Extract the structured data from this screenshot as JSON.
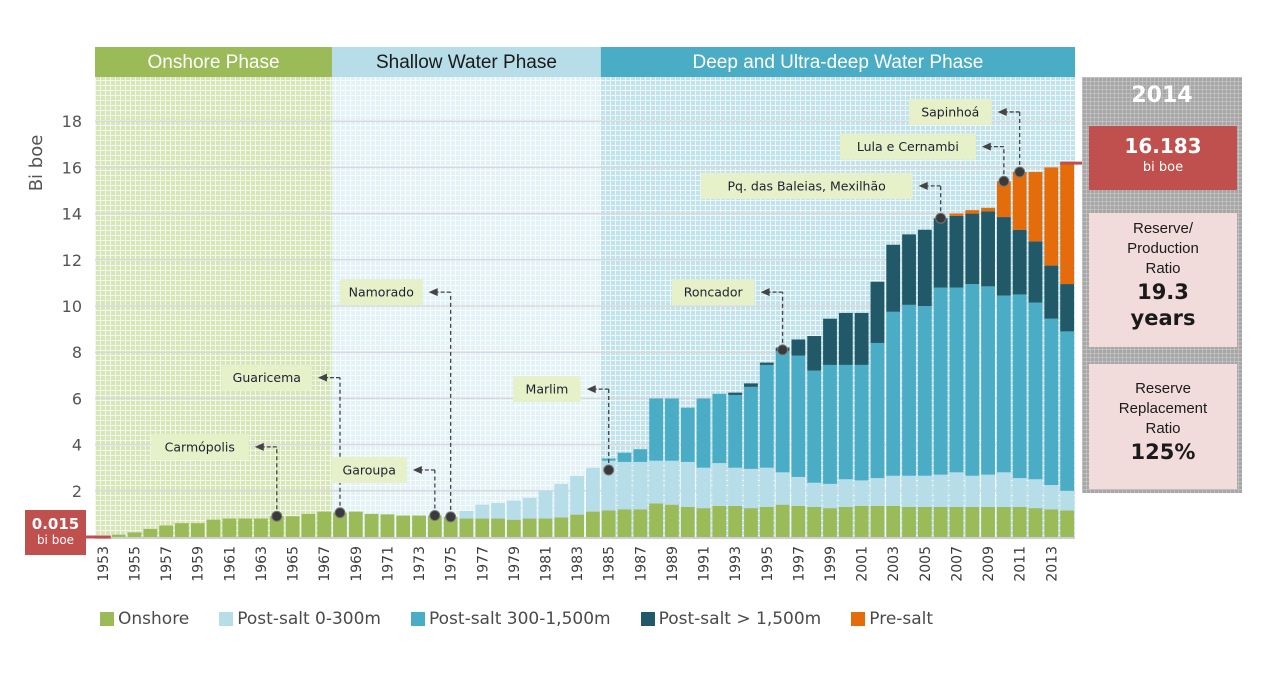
{
  "chart_data": {
    "type": "bar",
    "stacked": true,
    "ylabel": "Bi boe",
    "xlabel": "",
    "ylim": [
      0,
      19.5
    ],
    "yticks": [
      2,
      4,
      6,
      8,
      10,
      12,
      14,
      16,
      18
    ],
    "grid": true,
    "legend_position": "bottom",
    "categories": [
      "1953",
      "1954",
      "1955",
      "1956",
      "1957",
      "1958",
      "1959",
      "1960",
      "1961",
      "1962",
      "1963",
      "1964",
      "1965",
      "1966",
      "1967",
      "1968",
      "1969",
      "1970",
      "1971",
      "1972",
      "1973",
      "1974",
      "1975",
      "1976",
      "1977",
      "1978",
      "1979",
      "1980",
      "1981",
      "1982",
      "1983",
      "1984",
      "1985",
      "1986",
      "1987",
      "1988",
      "1989",
      "1990",
      "1991",
      "1992",
      "1993",
      "1994",
      "1995",
      "1996",
      "1997",
      "1998",
      "1999",
      "2000",
      "2001",
      "2002",
      "2003",
      "2004",
      "2005",
      "2006",
      "2007",
      "2008",
      "2009",
      "2010",
      "2011",
      "2012",
      "2013",
      "2014"
    ],
    "xtick_labels": [
      "1953",
      "1955",
      "1957",
      "1959",
      "1961",
      "1963",
      "1965",
      "1967",
      "1969",
      "1971",
      "1973",
      "1975",
      "1977",
      "1979",
      "1981",
      "1983",
      "1985",
      "1987",
      "1989",
      "1991",
      "1993",
      "1995",
      "1997",
      "1999",
      "2001",
      "2003",
      "2005",
      "2007",
      "2009",
      "2011",
      "2013"
    ],
    "series": [
      {
        "name": "Onshore",
        "color": "#9bbb59",
        "values": [
          0.015,
          0.1,
          0.2,
          0.35,
          0.5,
          0.6,
          0.6,
          0.75,
          0.8,
          0.8,
          0.8,
          0.9,
          0.9,
          1.0,
          1.1,
          1.05,
          1.1,
          1.0,
          0.98,
          0.93,
          0.93,
          0.93,
          0.87,
          0.8,
          0.8,
          0.8,
          0.75,
          0.8,
          0.8,
          0.85,
          0.97,
          1.1,
          1.15,
          1.2,
          1.2,
          1.45,
          1.4,
          1.3,
          1.25,
          1.35,
          1.35,
          1.25,
          1.3,
          1.4,
          1.35,
          1.3,
          1.25,
          1.3,
          1.35,
          1.35,
          1.35,
          1.3,
          1.3,
          1.3,
          1.3,
          1.3,
          1.3,
          1.3,
          1.3,
          1.25,
          1.2,
          1.15
        ]
      },
      {
        "name": "Post-salt 0-300m",
        "color": "#b7dde8",
        "values": [
          0,
          0,
          0,
          0,
          0,
          0,
          0,
          0,
          0,
          0,
          0,
          0,
          0,
          0,
          0,
          0,
          0,
          0,
          0,
          0,
          0,
          0,
          0,
          0.33,
          0.6,
          0.67,
          0.83,
          0.9,
          1.2,
          1.45,
          1.68,
          1.9,
          2.15,
          2.05,
          2.05,
          1.85,
          1.9,
          1.95,
          1.75,
          1.85,
          1.65,
          1.7,
          1.7,
          1.4,
          1.25,
          1.05,
          1.05,
          1.2,
          1.1,
          1.2,
          1.3,
          1.35,
          1.35,
          1.4,
          1.5,
          1.35,
          1.4,
          1.5,
          1.25,
          1.25,
          1.05,
          0.85
        ]
      },
      {
        "name": "Post-salt 300-1,500m",
        "color": "#4bacc6",
        "values": [
          0,
          0,
          0,
          0,
          0,
          0,
          0,
          0,
          0,
          0,
          0,
          0,
          0,
          0,
          0,
          0,
          0,
          0,
          0,
          0,
          0,
          0,
          0,
          0,
          0,
          0,
          0,
          0,
          0,
          0,
          0,
          0,
          0.1,
          0.4,
          0.55,
          2.7,
          2.7,
          2.35,
          3.0,
          3.0,
          3.15,
          3.55,
          4.45,
          5.25,
          5.25,
          4.85,
          5.15,
          4.95,
          5.0,
          5.85,
          7.1,
          7.4,
          7.35,
          8.1,
          8.0,
          8.3,
          8.15,
          7.65,
          7.95,
          7.65,
          7.2,
          6.9
        ]
      },
      {
        "name": "Post-salt > 1,500m",
        "color": "#215968",
        "values": [
          0,
          0,
          0,
          0,
          0,
          0,
          0,
          0,
          0,
          0,
          0,
          0,
          0,
          0,
          0,
          0,
          0,
          0,
          0,
          0,
          0,
          0,
          0,
          0,
          0,
          0,
          0,
          0,
          0,
          0,
          0,
          0,
          0,
          0,
          0,
          0,
          0,
          0,
          0,
          0,
          0.1,
          0.15,
          0.1,
          0.15,
          0.7,
          1.5,
          2.0,
          2.25,
          2.25,
          2.65,
          2.9,
          3.05,
          3.3,
          3.0,
          3.1,
          3.05,
          3.25,
          3.4,
          2.8,
          2.65,
          2.3,
          2.05
        ]
      },
      {
        "name": "Pre-salt",
        "color": "#e46c0a",
        "values": [
          0,
          0,
          0,
          0,
          0,
          0,
          0,
          0,
          0,
          0,
          0,
          0,
          0,
          0,
          0,
          0,
          0,
          0,
          0,
          0,
          0,
          0,
          0,
          0,
          0,
          0,
          0,
          0,
          0,
          0,
          0,
          0,
          0,
          0,
          0,
          0,
          0,
          0,
          0,
          0,
          0,
          0,
          0,
          0,
          0,
          0,
          0,
          0,
          0,
          0,
          0,
          0,
          0,
          0,
          0.1,
          0.15,
          0.15,
          1.55,
          2.5,
          3.0,
          4.25,
          5.233
        ]
      }
    ],
    "phases": [
      {
        "label": "Onshore Phase",
        "from": "1953",
        "to": "1967",
        "header_color": "#9bbb59",
        "bg_color": "#e4efd0",
        "text_color": "#ffffff"
      },
      {
        "label": "Shallow Water Phase",
        "from": "1968",
        "to": "1984",
        "header_color": "#b7dde8",
        "bg_color": "#eaf5f9",
        "text_color": "#1a1a1a"
      },
      {
        "label": "Deep and Ultra-deep Water Phase",
        "from": "1985",
        "to": "2014",
        "header_color": "#4bacc6",
        "bg_color": "#cfe8f0",
        "text_color": "#ffffff"
      }
    ],
    "annotations": [
      {
        "label": "Carmópolis",
        "year": "1964",
        "value": 0.9,
        "label_value": 3.9
      },
      {
        "label": "Guaricema",
        "year": "1968",
        "value": 1.05,
        "label_value": 6.9
      },
      {
        "label": "Garoupa",
        "year": "1974",
        "value": 0.93,
        "label_value": 2.9
      },
      {
        "label": "Namorado",
        "year": "1975",
        "value": 0.87,
        "label_value": 10.6
      },
      {
        "label": "Marlim",
        "year": "1985",
        "value": 2.9,
        "label_value": 6.4
      },
      {
        "label": "Roncador",
        "year": "1996",
        "value": 8.1,
        "label_value": 10.6
      },
      {
        "label": "Pq. das Baleias, Mexilhão",
        "year": "2006",
        "value": 13.8,
        "label_value": 15.2
      },
      {
        "label": "Lula e Cernambi",
        "year": "2010",
        "value": 15.4,
        "label_value": 16.9
      },
      {
        "label": "Sapinhoá",
        "year": "2011",
        "value": 15.8,
        "label_value": 18.4
      }
    ],
    "start_callout": {
      "value": "0.015",
      "unit": "bi boe"
    },
    "end_callout": {
      "value": "16.183",
      "unit": "bi boe"
    }
  },
  "side_panel": {
    "year": "2014",
    "total_value": "16.183",
    "total_unit": "bi boe",
    "rp_ratio": {
      "lines": [
        "Reserve/",
        "Production",
        "Ratio"
      ],
      "value": "19.3",
      "unit": "years"
    },
    "rr_ratio": {
      "lines": [
        "Reserve",
        "Replacement",
        "Ratio"
      ],
      "value": "125%"
    }
  }
}
